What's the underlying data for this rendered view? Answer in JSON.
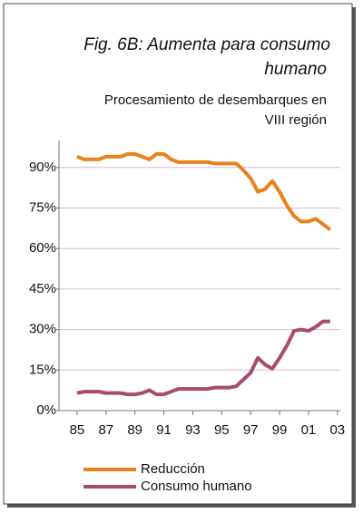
{
  "chart_data": {
    "type": "line",
    "title": "Fig. 6B: Aumenta para consumo humano",
    "subtitle": "Procesamiento de desembarques en VIII región",
    "x": [
      1985,
      1985.5,
      1986,
      1986.5,
      1987,
      1987.5,
      1988,
      1988.5,
      1989,
      1989.5,
      1990,
      1990.5,
      1991,
      1991.5,
      1992,
      1992.5,
      1993,
      1993.5,
      1994,
      1994.5,
      1995,
      1995.5,
      1996,
      1996.5,
      1997,
      1997.5,
      1998,
      1998.5,
      1999,
      1999.5,
      2000,
      2000.5,
      2001,
      2001.5,
      2002,
      2002.5
    ],
    "series": [
      {
        "name": "Reducción",
        "color": "#e8821e",
        "values": [
          94,
          93,
          93,
          93,
          94,
          94,
          94,
          95,
          95,
          94,
          93,
          95,
          95,
          93,
          92,
          92,
          92,
          92,
          92,
          91.5,
          91.5,
          91.5,
          91.5,
          89,
          86,
          81,
          82,
          85,
          81,
          76,
          72,
          70,
          70,
          71,
          69,
          67
        ]
      },
      {
        "name": "Consumo humano",
        "color": "#a84a72",
        "values": [
          6.5,
          7,
          7,
          7,
          6.5,
          6.5,
          6.5,
          6,
          6,
          6.5,
          7.5,
          6,
          6,
          7,
          8,
          8,
          8,
          8,
          8,
          8.5,
          8.5,
          8.5,
          9,
          11.5,
          14,
          19.5,
          17,
          15.5,
          19.5,
          24,
          29.5,
          30,
          29.5,
          31,
          33,
          33
        ]
      }
    ],
    "xlim": [
      1983.75,
      2003.2
    ],
    "xticks": [
      {
        "value": 1985,
        "label": "85"
      },
      {
        "value": 1987,
        "label": "87"
      },
      {
        "value": 1989,
        "label": "89"
      },
      {
        "value": 1991,
        "label": "91"
      },
      {
        "value": 1993,
        "label": "93"
      },
      {
        "value": 1995,
        "label": "95"
      },
      {
        "value": 1997,
        "label": "97"
      },
      {
        "value": 1999,
        "label": "99"
      },
      {
        "value": 2001,
        "label": "01"
      },
      {
        "value": 2003,
        "label": "03"
      }
    ],
    "ylim": [
      0,
      100
    ],
    "yticks": [
      {
        "value": 0,
        "label": "0%"
      },
      {
        "value": 15,
        "label": "15%"
      },
      {
        "value": 30,
        "label": "30%"
      },
      {
        "value": 45,
        "label": "45%"
      },
      {
        "value": 60,
        "label": "60%"
      },
      {
        "value": 75,
        "label": "75%"
      },
      {
        "value": 90,
        "label": "90%"
      }
    ],
    "grid": true
  }
}
